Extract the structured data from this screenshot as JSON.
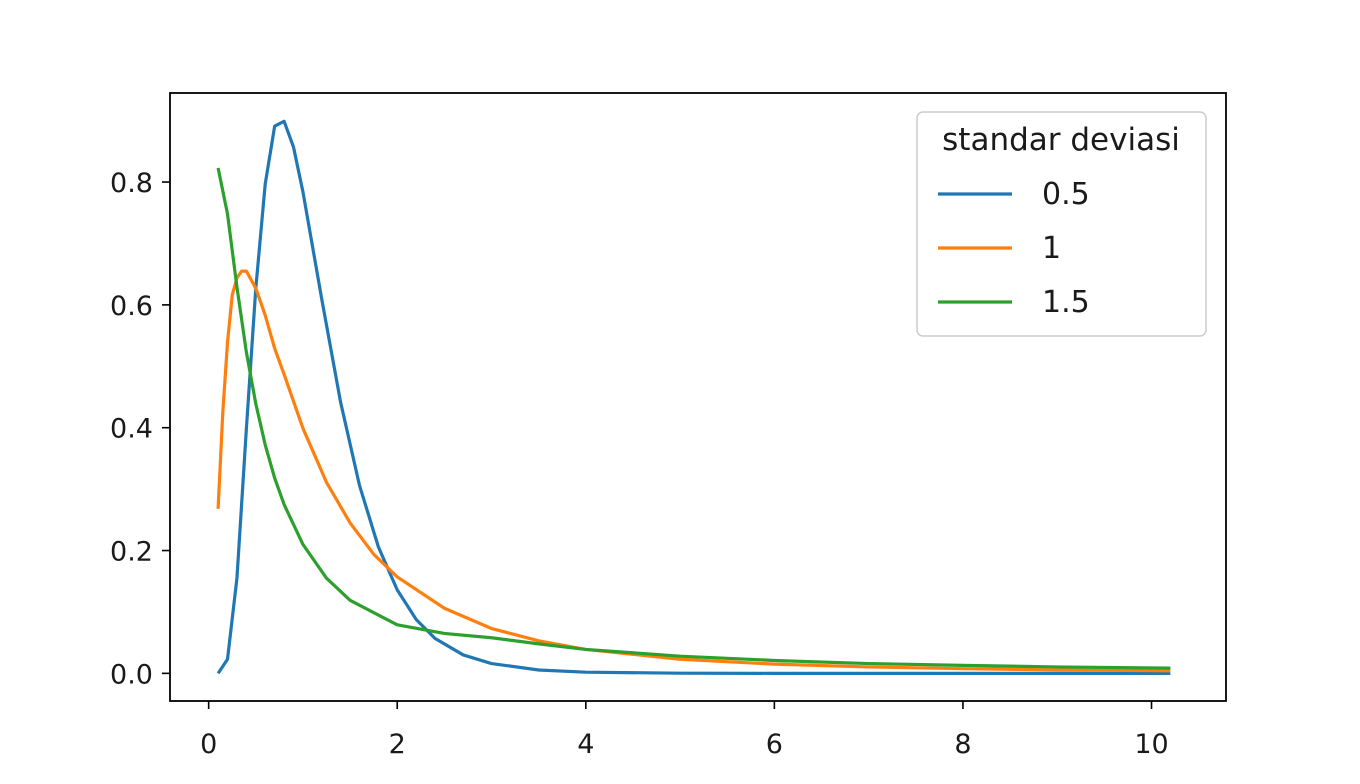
{
  "chart_data": {
    "type": "line",
    "title": "",
    "xlabel": "",
    "ylabel": "",
    "xlim": [
      -0.41,
      10.79
    ],
    "ylim": [
      -0.045,
      0.945
    ],
    "x_ticks": [
      0,
      2,
      4,
      6,
      8,
      10
    ],
    "x_tick_labels": [
      "0",
      "2",
      "4",
      "6",
      "8",
      "10"
    ],
    "y_ticks": [
      0.0,
      0.2,
      0.4,
      0.6,
      0.8
    ],
    "y_tick_labels": [
      "0.0",
      "0.2",
      "0.4",
      "0.6",
      "0.8"
    ],
    "grid": false,
    "legend": {
      "title": "standar deviasi",
      "placement": "top-right"
    },
    "series": [
      {
        "name": "0.5",
        "color": "#1f77b4",
        "points": [
          [
            0.1,
            0.0
          ],
          [
            0.2,
            0.023
          ],
          [
            0.3,
            0.155
          ],
          [
            0.4,
            0.398
          ],
          [
            0.5,
            0.627
          ],
          [
            0.6,
            0.797
          ],
          [
            0.7,
            0.891
          ],
          [
            0.8,
            0.899
          ],
          [
            0.9,
            0.857
          ],
          [
            1.0,
            0.784
          ],
          [
            1.2,
            0.609
          ],
          [
            1.4,
            0.441
          ],
          [
            1.6,
            0.306
          ],
          [
            1.8,
            0.206
          ],
          [
            2.0,
            0.136
          ],
          [
            2.2,
            0.088
          ],
          [
            2.4,
            0.057
          ],
          [
            2.7,
            0.03
          ],
          [
            3.0,
            0.016
          ],
          [
            3.5,
            0.0055
          ],
          [
            4.0,
            0.0019
          ],
          [
            5.0,
            0.0003
          ],
          [
            6.0,
            0.0
          ],
          [
            8.0,
            0.0
          ],
          [
            10.2,
            0.0
          ]
        ]
      },
      {
        "name": "1",
        "color": "#ff7f0e",
        "points": [
          [
            0.1,
            0.268
          ],
          [
            0.15,
            0.425
          ],
          [
            0.2,
            0.539
          ],
          [
            0.25,
            0.616
          ],
          [
            0.3,
            0.644
          ],
          [
            0.35,
            0.655
          ],
          [
            0.4,
            0.655
          ],
          [
            0.5,
            0.627
          ],
          [
            0.6,
            0.583
          ],
          [
            0.7,
            0.529
          ],
          [
            0.8,
            0.487
          ],
          [
            1.0,
            0.399
          ],
          [
            1.25,
            0.311
          ],
          [
            1.5,
            0.245
          ],
          [
            1.75,
            0.194
          ],
          [
            2.0,
            0.157
          ],
          [
            2.5,
            0.106
          ],
          [
            3.0,
            0.073
          ],
          [
            3.5,
            0.053
          ],
          [
            4.0,
            0.039
          ],
          [
            5.0,
            0.023
          ],
          [
            6.0,
            0.015
          ],
          [
            7.0,
            0.0105
          ],
          [
            8.0,
            0.0076
          ],
          [
            9.0,
            0.0056
          ],
          [
            10.2,
            0.0042
          ]
        ]
      },
      {
        "name": "1.5",
        "color": "#2ca02c",
        "points": [
          [
            0.1,
            0.823
          ],
          [
            0.2,
            0.748
          ],
          [
            0.3,
            0.629
          ],
          [
            0.4,
            0.523
          ],
          [
            0.5,
            0.439
          ],
          [
            0.6,
            0.372
          ],
          [
            0.7,
            0.318
          ],
          [
            0.8,
            0.275
          ],
          [
            1.0,
            0.21
          ],
          [
            1.25,
            0.155
          ],
          [
            1.5,
            0.119
          ],
          [
            2.0,
            0.079
          ],
          [
            2.5,
            0.065
          ],
          [
            3.0,
            0.058
          ],
          [
            3.5,
            0.048
          ],
          [
            4.0,
            0.039
          ],
          [
            5.0,
            0.028
          ],
          [
            6.0,
            0.021
          ],
          [
            7.0,
            0.016
          ],
          [
            8.0,
            0.013
          ],
          [
            9.0,
            0.0105
          ],
          [
            10.2,
            0.0085
          ]
        ]
      }
    ]
  }
}
